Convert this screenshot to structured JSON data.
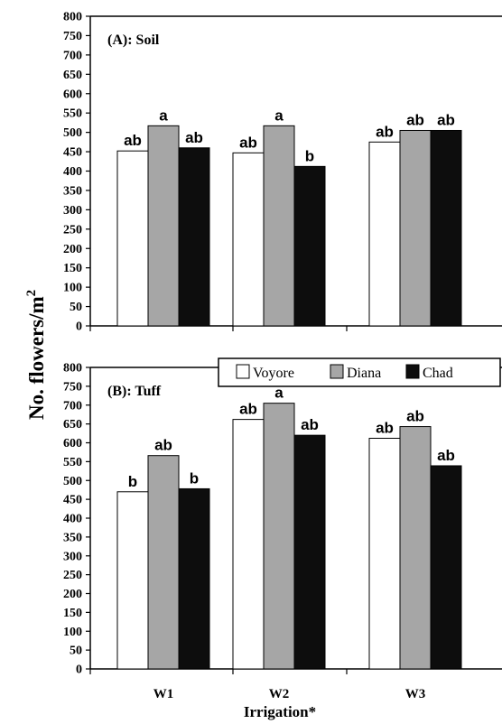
{
  "chart_data": [
    {
      "type": "bar",
      "title": "(A): Soil",
      "categories": [
        "W1",
        "W2",
        "W3"
      ],
      "ylim": [
        0,
        800
      ],
      "yticks": [
        0,
        50,
        100,
        150,
        200,
        250,
        300,
        350,
        400,
        450,
        500,
        550,
        600,
        650,
        700,
        750,
        800
      ],
      "series": [
        {
          "name": "Voyore",
          "color": "#ffffff",
          "values": [
            452,
            447,
            475
          ],
          "labels": [
            "ab",
            "ab",
            "ab"
          ]
        },
        {
          "name": "Diana",
          "color": "#a6a6a6",
          "values": [
            517,
            517,
            505
          ],
          "labels": [
            "a",
            "a",
            "ab"
          ]
        },
        {
          "name": "Chad",
          "color": "#0d0d0d",
          "values": [
            460,
            412,
            505
          ],
          "labels": [
            "ab",
            "b",
            "ab"
          ]
        }
      ]
    },
    {
      "type": "bar",
      "title": "(B): Tuff",
      "categories": [
        "W1",
        "W2",
        "W3"
      ],
      "ylim": [
        0,
        800
      ],
      "yticks": [
        0,
        50,
        100,
        150,
        200,
        250,
        300,
        350,
        400,
        450,
        500,
        550,
        600,
        650,
        700,
        750,
        800
      ],
      "series": [
        {
          "name": "Voyore",
          "color": "#ffffff",
          "values": [
            470,
            662,
            612
          ],
          "labels": [
            "b",
            "ab",
            "ab"
          ]
        },
        {
          "name": "Diana",
          "color": "#a6a6a6",
          "values": [
            566,
            705,
            643
          ],
          "labels": [
            "ab",
            "a",
            "ab"
          ]
        },
        {
          "name": "Chad",
          "color": "#0d0d0d",
          "values": [
            478,
            620,
            539
          ],
          "labels": [
            "b",
            "ab",
            "ab"
          ]
        }
      ]
    }
  ],
  "ylabel_text": "No. flowers/m",
  "ylabel_sup": "2",
  "xlabel": "Irrigation*",
  "legend": [
    {
      "name": "Voyore",
      "color": "#ffffff"
    },
    {
      "name": "Diana",
      "color": "#a6a6a6"
    },
    {
      "name": "Chad",
      "color": "#0d0d0d"
    }
  ]
}
